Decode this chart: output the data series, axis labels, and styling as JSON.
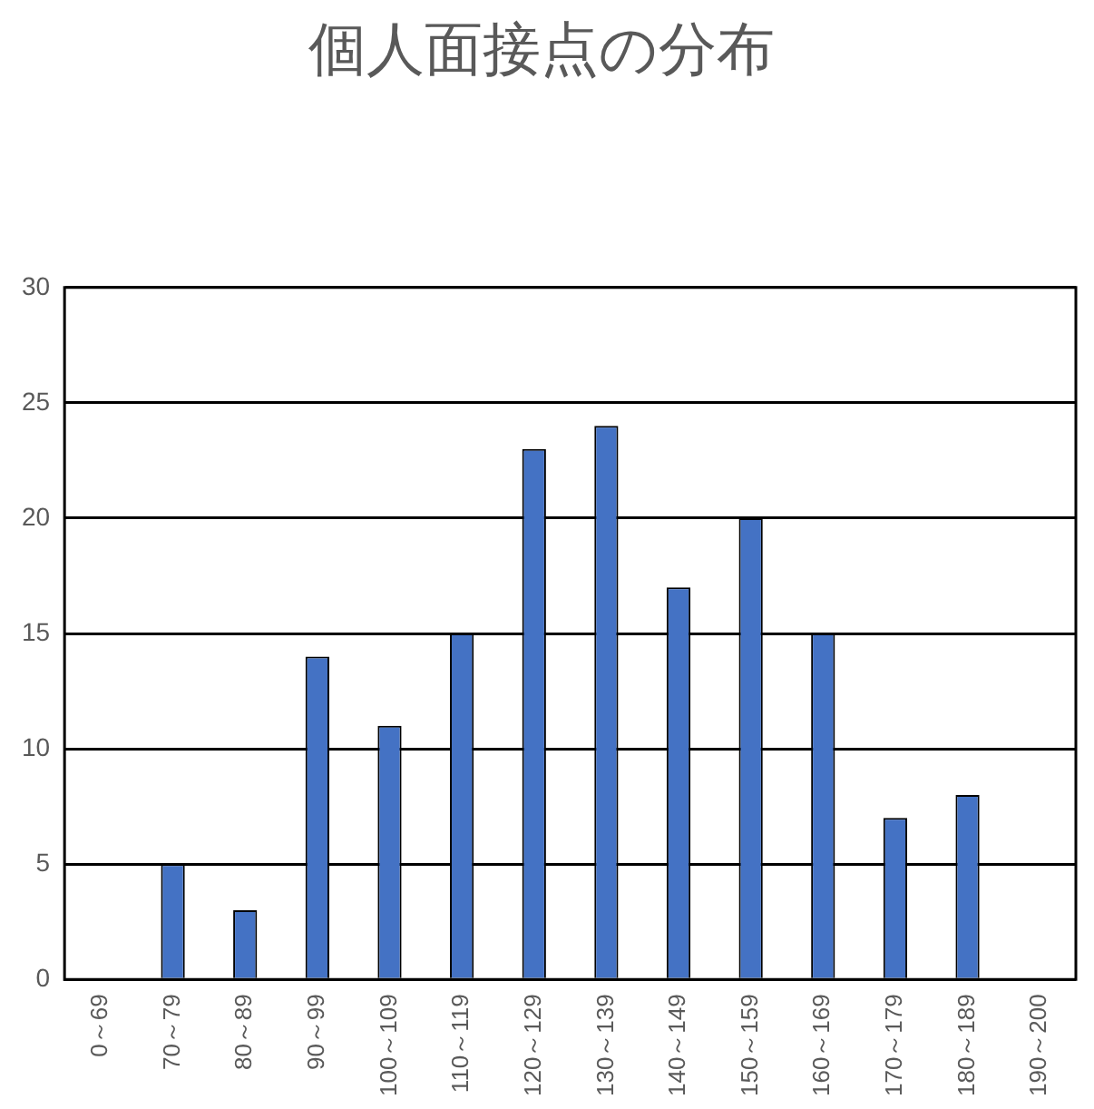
{
  "chart_data": {
    "type": "bar",
    "title": "個人面接点の分布",
    "categories": [
      "0～69",
      "70～79",
      "80～89",
      "90～99",
      "100～109",
      "110～119",
      "120～129",
      "130～139",
      "140～149",
      "150～159",
      "160～169",
      "170～179",
      "180～189",
      "190～200"
    ],
    "values": [
      0,
      5,
      3,
      14,
      11,
      15,
      23,
      24,
      17,
      20,
      15,
      7,
      8,
      0
    ],
    "color": "#4472c4",
    "ylim": [
      0,
      30
    ],
    "yticks": [
      0,
      5,
      10,
      15,
      20,
      25,
      30
    ],
    "grid": "y",
    "legend": false
  }
}
